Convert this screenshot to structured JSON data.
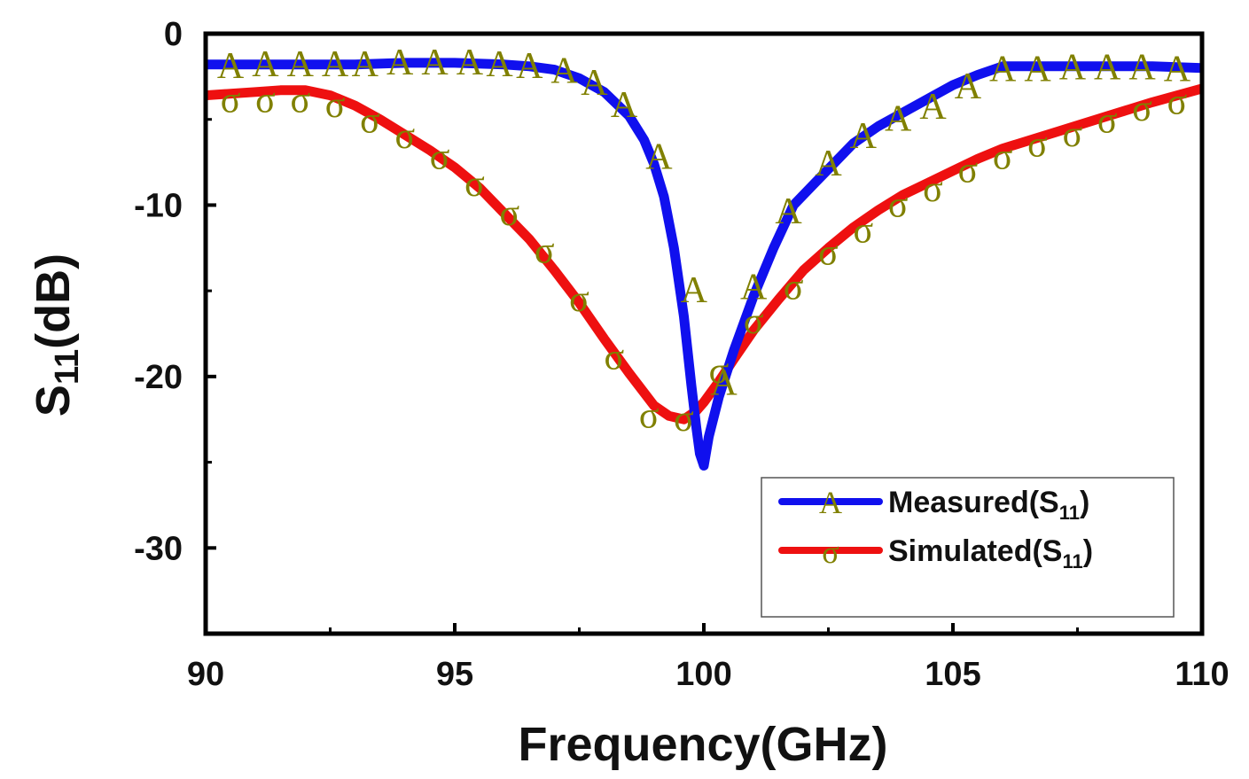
{
  "chart_data": {
    "type": "line",
    "title": "",
    "xlabel": "Frequency(GHz)",
    "ylabel_main": "S",
    "ylabel_sub": "11",
    "ylabel_tail": "(dB)",
    "xlim": [
      90,
      110
    ],
    "ylim": [
      -35,
      0
    ],
    "x_ticks": [
      90,
      95,
      100,
      105,
      110
    ],
    "x_tick_labels": [
      "90",
      "95",
      "100",
      "105",
      "110"
    ],
    "y_ticks": [
      0,
      -10,
      -20,
      -30
    ],
    "y_tick_labels": [
      "0",
      "-10",
      "-20",
      "-30"
    ],
    "x_minor_ticks": [
      92.5,
      97.5,
      102.5,
      107.5
    ],
    "y_minor_ticks": [
      -5,
      -15,
      -25,
      -35
    ],
    "grid": false,
    "legend_position": "bottom-right",
    "series": [
      {
        "name": "Measured",
        "legend_main": "Measured(S",
        "legend_sub": "11",
        "legend_tail": ")",
        "color": "#1010ee",
        "marker": "A",
        "marker_color": "#808000",
        "x": [
          90,
          91,
          92,
          93,
          94,
          95,
          96,
          96.5,
          97,
          97.5,
          98,
          98.5,
          98.8,
          99.0,
          99.2,
          99.4,
          99.6,
          99.75,
          99.85,
          99.92,
          100.0,
          100.1,
          100.3,
          100.6,
          101.0,
          101.4,
          101.8,
          102.2,
          102.6,
          103,
          103.5,
          104,
          104.5,
          105,
          105.5,
          106,
          107,
          108,
          109,
          110
        ],
        "values": [
          -1.8,
          -1.8,
          -1.8,
          -1.8,
          -1.7,
          -1.7,
          -1.8,
          -1.9,
          -2.1,
          -2.6,
          -3.4,
          -4.8,
          -6.2,
          -7.6,
          -9.5,
          -12.5,
          -16.5,
          -20.5,
          -23.0,
          -24.5,
          -25.2,
          -23.5,
          -21.2,
          -18.5,
          -15.3,
          -12.5,
          -10.0,
          -8.8,
          -7.6,
          -6.4,
          -5.4,
          -4.6,
          -3.8,
          -3.0,
          -2.4,
          -1.9,
          -1.9,
          -1.9,
          -1.9,
          -2.0
        ],
        "marker_x": [
          90.5,
          91.2,
          91.9,
          92.6,
          93.2,
          93.9,
          94.6,
          95.3,
          95.9,
          96.5,
          97.2,
          97.8,
          98.4,
          99.1,
          99.8,
          100.4,
          101.0,
          101.7,
          102.5,
          103.2,
          103.9,
          104.6,
          105.3,
          106.0,
          106.7,
          107.4,
          108.1,
          108.8,
          109.5
        ],
        "marker_values": [
          -1.9,
          -1.8,
          -1.8,
          -1.8,
          -1.8,
          -1.7,
          -1.7,
          -1.7,
          -1.8,
          -1.9,
          -2.2,
          -2.9,
          -4.2,
          -7.2,
          -15.0,
          -20.4,
          -14.8,
          -10.4,
          -7.6,
          -6.0,
          -5.0,
          -4.3,
          -3.1,
          -2.1,
          -2.1,
          -2.0,
          -2.0,
          -2.0,
          -2.1
        ]
      },
      {
        "name": "Simulated",
        "legend_main": "Simulated(S",
        "legend_sub": "11",
        "legend_tail": ")",
        "color": "#ee1010",
        "marker": "σ",
        "marker_color": "#808000",
        "x": [
          90,
          90.5,
          91,
          91.5,
          92,
          92.5,
          93,
          93.5,
          94,
          94.5,
          95,
          95.5,
          96,
          96.5,
          97,
          97.5,
          98,
          98.5,
          99,
          99.3,
          99.6,
          99.85,
          100.0,
          100.3,
          100.6,
          101,
          101.5,
          102,
          102.5,
          103,
          103.5,
          104,
          104.5,
          105,
          105.5,
          106,
          107,
          108,
          109,
          110
        ],
        "values": [
          -3.6,
          -3.5,
          -3.4,
          -3.3,
          -3.3,
          -3.6,
          -4.2,
          -5.0,
          -5.9,
          -6.8,
          -7.8,
          -9.0,
          -10.5,
          -12.0,
          -13.8,
          -15.7,
          -17.8,
          -19.8,
          -21.7,
          -22.3,
          -22.5,
          -22.0,
          -21.5,
          -20.3,
          -19.0,
          -17.3,
          -15.5,
          -13.8,
          -12.5,
          -11.3,
          -10.3,
          -9.4,
          -8.7,
          -8.0,
          -7.3,
          -6.7,
          -5.8,
          -4.9,
          -4.0,
          -3.2
        ],
        "marker_x": [
          90.5,
          91.2,
          91.9,
          92.6,
          93.3,
          94.0,
          94.7,
          95.4,
          96.1,
          96.8,
          97.5,
          98.2,
          98.9,
          99.6,
          100.3,
          101.0,
          101.8,
          102.5,
          103.2,
          103.9,
          104.6,
          105.3,
          106.0,
          106.7,
          107.4,
          108.1,
          108.8,
          109.5
        ],
        "marker_values": [
          -3.9,
          -3.9,
          -3.9,
          -4.2,
          -5.1,
          -6.0,
          -7.2,
          -8.8,
          -10.5,
          -12.7,
          -15.5,
          -18.9,
          -22.3,
          -22.5,
          -19.7,
          -16.8,
          -14.8,
          -12.8,
          -11.5,
          -10.0,
          -9.1,
          -8.0,
          -7.2,
          -6.5,
          -5.9,
          -5.1,
          -4.4,
          -4.0
        ]
      }
    ]
  }
}
